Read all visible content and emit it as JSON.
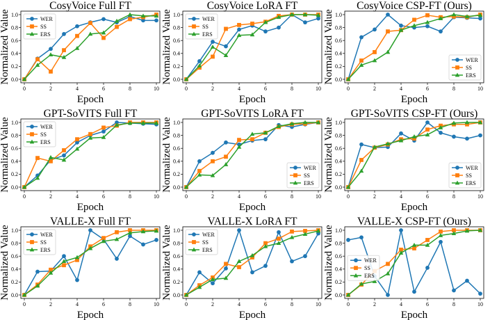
{
  "figure": {
    "colors": {
      "WER": "#1f77b4",
      "SS": "#ff7f0e",
      "ERS": "#2ca02c"
    },
    "legend_entries": [
      "WER",
      "SS",
      "ERS"
    ],
    "xlabel": "Epoch",
    "ylabel": "Normalized Value",
    "xticks": [
      "0",
      "2",
      "4",
      "6",
      "8",
      "10"
    ],
    "yticks": [
      "0.0",
      "0.2",
      "0.4",
      "0.6",
      "0.8",
      "1.0"
    ]
  },
  "chart_data": [
    {
      "type": "line",
      "title": "CosyVoice  Full FT",
      "xlabel": "Epoch",
      "ylabel": "Normalized Value",
      "legend": "top-left",
      "xlim": [
        0,
        10
      ],
      "ylim": [
        0,
        1
      ],
      "x": [
        0,
        1,
        2,
        3,
        4,
        5,
        6,
        7,
        8,
        9,
        10
      ],
      "series": [
        {
          "name": "WER",
          "values": [
            0,
            0.32,
            0.47,
            0.7,
            0.82,
            0.88,
            0.93,
            0.88,
            0.97,
            0.91,
            0.91
          ]
        },
        {
          "name": "SS",
          "values": [
            0,
            0.31,
            0.12,
            0.45,
            0.67,
            0.87,
            0.64,
            0.81,
            0.93,
            0.96,
            1.0
          ]
        },
        {
          "name": "ERS",
          "values": [
            0,
            0.22,
            0.38,
            0.34,
            0.48,
            0.7,
            0.72,
            0.9,
            1.0,
            0.98,
            0.98
          ]
        }
      ]
    },
    {
      "type": "line",
      "title": "CosyVoice  LoRA FT",
      "xlabel": "Epoch",
      "ylabel": "Normalized Value",
      "legend": "top-left",
      "xlim": [
        0,
        10
      ],
      "ylim": [
        0,
        1
      ],
      "x": [
        0,
        1,
        2,
        3,
        4,
        5,
        6,
        7,
        8,
        9,
        10
      ],
      "series": [
        {
          "name": "WER",
          "values": [
            0,
            0.28,
            0.58,
            0.51,
            0.77,
            0.83,
            0.74,
            0.8,
            1.0,
            0.88,
            0.94
          ]
        },
        {
          "name": "SS",
          "values": [
            0,
            0.18,
            0.35,
            0.78,
            0.84,
            0.86,
            0.89,
            0.98,
            1.0,
            1.0,
            1.0
          ]
        },
        {
          "name": "ERS",
          "values": [
            0,
            0.21,
            0.5,
            0.37,
            0.68,
            0.69,
            0.88,
            0.96,
            1.0,
            1.0,
            0.99
          ]
        }
      ]
    },
    {
      "type": "line",
      "title": "CosyVoice  CSP-FT (Ours)",
      "xlabel": "Epoch",
      "ylabel": "Normalized Value",
      "legend": "bottom-right",
      "xlim": [
        0,
        10
      ],
      "ylim": [
        0,
        1
      ],
      "x": [
        0,
        1,
        2,
        3,
        4,
        5,
        6,
        7,
        8,
        9,
        10
      ],
      "series": [
        {
          "name": "WER",
          "values": [
            0,
            0.65,
            0.77,
            1.0,
            0.83,
            0.8,
            0.82,
            0.74,
            0.96,
            0.95,
            0.94
          ]
        },
        {
          "name": "SS",
          "values": [
            0,
            0.29,
            0.42,
            0.74,
            0.76,
            0.92,
            0.99,
            0.96,
            0.97,
            0.96,
            1.0
          ]
        },
        {
          "name": "ERS",
          "values": [
            0,
            0.22,
            0.29,
            0.42,
            0.76,
            0.83,
            0.88,
            0.94,
            1.0,
            0.97,
            0.99
          ]
        }
      ]
    },
    {
      "type": "line",
      "title": "GPT-SoVITS  Full FT",
      "xlabel": "Epoch",
      "ylabel": "Normalized Value",
      "legend": "top-left",
      "xlim": [
        0,
        10
      ],
      "ylim": [
        0,
        1
      ],
      "x": [
        0,
        1,
        2,
        3,
        4,
        5,
        6,
        7,
        8,
        9,
        10
      ],
      "series": [
        {
          "name": "WER",
          "values": [
            0,
            0.18,
            0.42,
            0.49,
            0.69,
            0.8,
            0.86,
            1.0,
            0.99,
            0.98,
            0.97
          ]
        },
        {
          "name": "SS",
          "values": [
            0,
            0.45,
            0.4,
            0.57,
            0.74,
            0.82,
            0.92,
            0.95,
            1.0,
            1.0,
            1.0
          ]
        },
        {
          "name": "ERS",
          "values": [
            0,
            0.14,
            0.46,
            0.42,
            0.59,
            0.76,
            0.77,
            0.96,
            0.99,
            0.99,
            0.99
          ]
        }
      ]
    },
    {
      "type": "line",
      "title": "GPT-SoVITS  LoRA FT",
      "xlabel": "Epoch",
      "ylabel": "Normalized Value",
      "legend": "bottom-right",
      "xlim": [
        0,
        10
      ],
      "ylim": [
        0,
        1
      ],
      "x": [
        0,
        1,
        2,
        3,
        4,
        5,
        6,
        7,
        8,
        9,
        10
      ],
      "series": [
        {
          "name": "WER",
          "values": [
            0,
            0.4,
            0.53,
            0.69,
            0.66,
            0.72,
            0.74,
            0.96,
            0.93,
            0.97,
            1.0
          ]
        },
        {
          "name": "SS",
          "values": [
            0,
            0.25,
            0.4,
            0.47,
            0.73,
            0.74,
            0.84,
            0.93,
            0.97,
            0.98,
            1.0
          ]
        },
        {
          "name": "ERS",
          "values": [
            0,
            0.19,
            0.18,
            0.35,
            0.62,
            0.82,
            0.84,
            0.94,
            0.98,
            1.0,
            1.0
          ]
        }
      ]
    },
    {
      "type": "line",
      "title": "GPT-SoVITS  CSP-FT (Ours)",
      "xlabel": "Epoch",
      "ylabel": "Normalized Value",
      "legend": "bottom-right",
      "xlim": [
        0,
        10
      ],
      "ylim": [
        0,
        1
      ],
      "x": [
        0,
        1,
        2,
        3,
        4,
        5,
        6,
        7,
        8,
        9,
        10
      ],
      "series": [
        {
          "name": "WER",
          "values": [
            0,
            0.66,
            0.61,
            0.62,
            0.83,
            0.72,
            1.0,
            0.84,
            0.78,
            0.75,
            0.8
          ]
        },
        {
          "name": "SS",
          "values": [
            0,
            0.42,
            0.61,
            0.66,
            0.74,
            0.75,
            0.89,
            0.95,
            0.97,
            0.97,
            1.0
          ]
        },
        {
          "name": "ERS",
          "values": [
            0,
            0.25,
            0.62,
            0.67,
            0.72,
            0.78,
            0.81,
            0.92,
            0.99,
            1.0,
            1.0
          ]
        }
      ]
    },
    {
      "type": "line",
      "title": "VALLE-X  Full FT",
      "xlabel": "Epoch",
      "ylabel": "Normalized Value",
      "legend": "top-left",
      "xlim": [
        0,
        10
      ],
      "ylim": [
        0,
        1
      ],
      "x": [
        0,
        1,
        2,
        3,
        4,
        5,
        6,
        7,
        8,
        9,
        10
      ],
      "series": [
        {
          "name": "WER",
          "values": [
            0,
            0.36,
            0.37,
            0.6,
            0.23,
            1.0,
            0.86,
            0.56,
            0.91,
            0.78,
            0.85
          ]
        },
        {
          "name": "SS",
          "values": [
            0,
            0.16,
            0.39,
            0.46,
            0.54,
            0.75,
            0.88,
            0.97,
            1.0,
            1.0,
            1.0
          ]
        },
        {
          "name": "ERS",
          "values": [
            0,
            0.14,
            0.34,
            0.52,
            0.58,
            0.72,
            0.83,
            0.86,
            0.96,
            0.98,
            0.99
          ]
        }
      ]
    },
    {
      "type": "line",
      "title": "VALLE-X  LoRA FT",
      "xlabel": "Epoch",
      "ylabel": "Normalized Value",
      "legend": "top-left",
      "xlim": [
        0,
        10
      ],
      "ylim": [
        0,
        1
      ],
      "x": [
        0,
        1,
        2,
        3,
        4,
        5,
        6,
        7,
        8,
        9,
        10
      ],
      "series": [
        {
          "name": "WER",
          "values": [
            0,
            0.35,
            0.18,
            0.41,
            1.0,
            0.35,
            0.45,
            0.97,
            0.52,
            0.6,
            0.95
          ]
        },
        {
          "name": "SS",
          "values": [
            0,
            0.15,
            0.27,
            0.48,
            0.43,
            0.58,
            0.8,
            0.87,
            0.98,
            0.99,
            1.0
          ]
        },
        {
          "name": "ERS",
          "values": [
            0,
            0.12,
            0.24,
            0.26,
            0.52,
            0.61,
            0.75,
            0.8,
            0.89,
            0.94,
            0.99
          ]
        }
      ]
    },
    {
      "type": "line",
      "title": "VALLE-X  CSP-FT (Ours)",
      "xlabel": "Epoch",
      "ylabel": "Normalized Value",
      "legend": "center-left",
      "xlim": [
        0,
        10
      ],
      "ylim": [
        0,
        1
      ],
      "x": [
        0,
        1,
        2,
        3,
        4,
        5,
        6,
        7,
        8,
        9,
        10
      ],
      "series": [
        {
          "name": "WER",
          "values": [
            0.85,
            0.89,
            0.29,
            0,
            1.0,
            0.05,
            0.42,
            0.82,
            0.07,
            0.22,
            0.02
          ]
        },
        {
          "name": "SS",
          "values": [
            0,
            0.16,
            0.37,
            0.48,
            0.7,
            0.72,
            0.85,
            0.98,
            1.0,
            1.0,
            1.0
          ]
        },
        {
          "name": "ERS",
          "values": [
            0,
            0.17,
            0.21,
            0.33,
            0.65,
            0.77,
            0.77,
            0.92,
            0.95,
            0.99,
            1.0
          ]
        }
      ]
    }
  ]
}
